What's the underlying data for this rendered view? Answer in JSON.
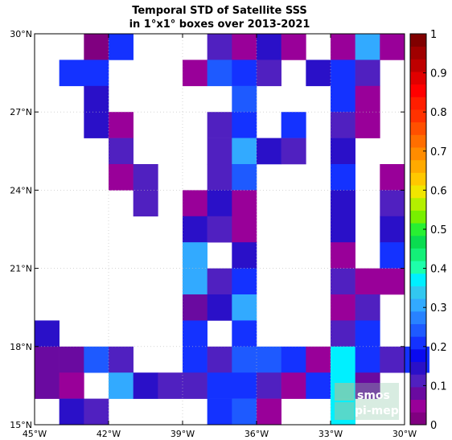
{
  "chart_data": {
    "type": "heatmap",
    "title_lines": [
      "Temporal STD of Satellite SSS",
      "in 1°x1° boxes over 2013-2021"
    ],
    "x_ticks": [
      {
        "value": -45,
        "label": "45°W"
      },
      {
        "value": -42,
        "label": "42°W"
      },
      {
        "value": -39,
        "label": "39°W"
      },
      {
        "value": -36,
        "label": "36°W"
      },
      {
        "value": -33,
        "label": "33°W"
      },
      {
        "value": -30,
        "label": "30°W"
      }
    ],
    "y_ticks": [
      {
        "value": 15,
        "label": "15°N"
      },
      {
        "value": 18,
        "label": "18°N"
      },
      {
        "value": 21,
        "label": "21°N"
      },
      {
        "value": 24,
        "label": "24°N"
      },
      {
        "value": 27,
        "label": "27°N"
      },
      {
        "value": 30,
        "label": "30°N"
      }
    ],
    "xlim": [
      -45,
      -30
    ],
    "ylim": [
      15,
      30
    ],
    "grid": true,
    "colorbar": {
      "range": [
        0,
        1
      ],
      "ticks": [
        "0",
        "0.1",
        "0.2",
        "0.3",
        "0.4",
        "0.5",
        "0.6",
        "0.7",
        "0.8",
        "0.9",
        "1"
      ],
      "colors": [
        "#800080",
        "#990099",
        "#6a0aa0",
        "#5020c0",
        "#2a10c8",
        "#0a0af0",
        "#1432ff",
        "#1e5aff",
        "#2882ff",
        "#32aaff",
        "#32c8f0",
        "#00f0ff",
        "#1effaa",
        "#14f078",
        "#0adc50",
        "#28f032",
        "#78f000",
        "#b4f000",
        "#f0e600",
        "#ffc800",
        "#ffaa00",
        "#ff8c00",
        "#ff6e00",
        "#ff5000",
        "#ff3200",
        "#ff1e00",
        "#ff0000",
        "#e10000",
        "#be0000",
        "#a00000",
        "#800000"
      ]
    },
    "cells_lon_lat_std": [
      [
        -43,
        29,
        0.03
      ],
      [
        -42,
        29,
        0.2
      ],
      [
        -38,
        29,
        0.1
      ],
      [
        -37,
        29,
        0.05
      ],
      [
        -36,
        29,
        0.15
      ],
      [
        -35,
        29,
        0.05
      ],
      [
        -33,
        29,
        0.05
      ],
      [
        -32,
        29,
        0.3
      ],
      [
        -31,
        29,
        0.05
      ],
      [
        -44,
        28,
        0.2
      ],
      [
        -43,
        28,
        0.2
      ],
      [
        -39,
        28,
        0.05
      ],
      [
        -38,
        28,
        0.25
      ],
      [
        -37,
        28,
        0.2
      ],
      [
        -36,
        28,
        0.1
      ],
      [
        -34,
        28,
        0.15
      ],
      [
        -33,
        28,
        0.2
      ],
      [
        -32,
        28,
        0.1
      ],
      [
        -43,
        27,
        0.15
      ],
      [
        -37,
        27,
        0.25
      ],
      [
        -33,
        27,
        0.22
      ],
      [
        -32,
        27,
        0.05
      ],
      [
        -43,
        26,
        0.15
      ],
      [
        -42,
        26,
        0.05
      ],
      [
        -38,
        26,
        0.1
      ],
      [
        -37,
        26,
        0.2
      ],
      [
        -35,
        26,
        0.22
      ],
      [
        -33,
        26,
        0.1
      ],
      [
        -32,
        26,
        0.05
      ],
      [
        -42,
        25,
        0.1
      ],
      [
        -38,
        25,
        0.1
      ],
      [
        -37,
        25,
        0.3
      ],
      [
        -36,
        25,
        0.15
      ],
      [
        -35,
        25,
        0.1
      ],
      [
        -33,
        25,
        0.15
      ],
      [
        -42,
        24,
        0.05
      ],
      [
        -41,
        24,
        0.1
      ],
      [
        -38,
        24,
        0.1
      ],
      [
        -37,
        24,
        0.25
      ],
      [
        -33,
        24,
        0.2
      ],
      [
        -31,
        24,
        0.05
      ],
      [
        -41,
        23,
        0.1
      ],
      [
        -39,
        23,
        0.05
      ],
      [
        -38,
        23,
        0.15
      ],
      [
        -37,
        23,
        0.05
      ],
      [
        -33,
        23,
        0.15
      ],
      [
        -31,
        23,
        0.1
      ],
      [
        -39,
        22,
        0.15
      ],
      [
        -38,
        22,
        0.1
      ],
      [
        -37,
        22,
        0.05
      ],
      [
        -33,
        22,
        0.15
      ],
      [
        -31,
        22,
        0.15
      ],
      [
        -39,
        21,
        0.3
      ],
      [
        -37,
        21,
        0.15
      ],
      [
        -33,
        21,
        0.05
      ],
      [
        -31,
        21,
        0.2
      ],
      [
        -39,
        20,
        0.3
      ],
      [
        -38,
        20,
        0.1
      ],
      [
        -37,
        20,
        0.2
      ],
      [
        -33,
        20,
        0.1
      ],
      [
        -32,
        20,
        0.05
      ],
      [
        -31,
        20,
        0.05
      ],
      [
        -39,
        19,
        0.08
      ],
      [
        -38,
        19,
        0.15
      ],
      [
        -37,
        19,
        0.3
      ],
      [
        -33,
        19,
        0.05
      ],
      [
        -32,
        19,
        0.12
      ],
      [
        -45,
        18,
        0.15
      ],
      [
        -39,
        18,
        0.2
      ],
      [
        -37,
        18,
        0.22
      ],
      [
        -33,
        18,
        0.12
      ],
      [
        -32,
        18,
        0.22
      ],
      [
        -45,
        17,
        0.08
      ],
      [
        -44,
        17,
        0.08
      ],
      [
        -43,
        17,
        0.25
      ],
      [
        -42,
        17,
        0.1
      ],
      [
        -39,
        17,
        0.2
      ],
      [
        -38,
        17,
        0.1
      ],
      [
        -37,
        17,
        0.25
      ],
      [
        -36,
        17,
        0.25
      ],
      [
        -35,
        17,
        0.22
      ],
      [
        -34,
        17,
        0.05
      ],
      [
        -33,
        17,
        0.38
      ],
      [
        -32,
        17,
        0.22
      ],
      [
        -31,
        17,
        0.1
      ],
      [
        -30,
        17,
        0.2
      ],
      [
        -45,
        16,
        0.08
      ],
      [
        -44,
        16,
        0.05
      ],
      [
        -42,
        16,
        0.3
      ],
      [
        -41,
        16,
        0.15
      ],
      [
        -40,
        16,
        0.1
      ],
      [
        -39,
        16,
        0.1
      ],
      [
        -38,
        16,
        0.2
      ],
      [
        -37,
        16,
        0.22
      ],
      [
        -36,
        16,
        0.12
      ],
      [
        -35,
        16,
        0.05
      ],
      [
        -34,
        16,
        0.2
      ],
      [
        -33,
        16,
        0.38
      ],
      [
        -32,
        16,
        0.08
      ],
      [
        -44,
        15,
        0.15
      ],
      [
        -43,
        15,
        0.1
      ],
      [
        -38,
        15,
        0.22
      ],
      [
        -37,
        15,
        0.25
      ],
      [
        -36,
        15,
        0.05
      ],
      [
        -33,
        15,
        0.38
      ]
    ]
  },
  "logo": {
    "line1": "smos",
    "line2": "pi-mep"
  }
}
